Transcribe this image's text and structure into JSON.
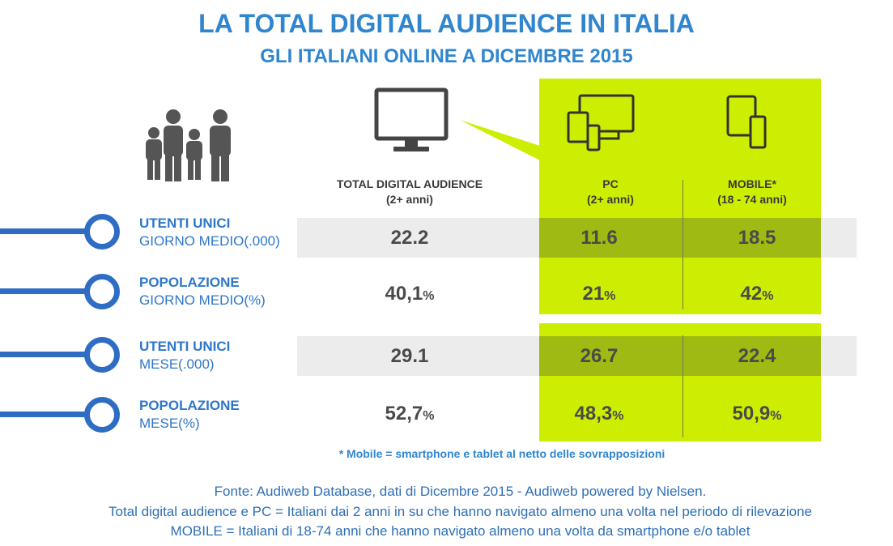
{
  "header": {
    "title": "LA TOTAL DIGITAL AUDIENCE IN ITALIA",
    "subtitle": "GLI ITALIANI ONLINE A DICEMBRE 2015"
  },
  "columns": [
    {
      "title": "TOTAL DIGITAL AUDIENCE",
      "subtitle": "(2+ anni)"
    },
    {
      "title": "PC",
      "subtitle": "(2+ anni)"
    },
    {
      "title": "MOBILE*",
      "subtitle": "(18 - 74 anni)"
    }
  ],
  "rows": [
    {
      "label_bold": "UTENTI UNICI",
      "label_sub": "GIORNO MEDIO(.000)",
      "unit": "",
      "values": [
        "22.2",
        "11.6",
        "18.5"
      ]
    },
    {
      "label_bold": "POPOLAZIONE",
      "label_sub": "GIORNO MEDIO(%)",
      "unit": "%",
      "values": [
        "40,1",
        "21",
        "42"
      ]
    },
    {
      "label_bold": "UTENTI UNICI",
      "label_sub": "MESE(.000)",
      "unit": "",
      "values": [
        "29.1",
        "26.7",
        "22.4"
      ]
    },
    {
      "label_bold": "POPOLAZIONE",
      "label_sub": "MESE(%)",
      "unit": "%",
      "values": [
        "52,7",
        "48,3",
        "50,9"
      ]
    }
  ],
  "footnote": "* Mobile = smartphone e tablet al netto delle sovrapposizioni",
  "source": [
    "Fonte: Audiweb Database, dati di Dicembre 2015 - Audiweb powered by Nielsen.",
    "Total digital audience e PC = Italiani dai 2 anni in su che hanno navigato almeno una volta nel periodo di rilevazione",
    "MOBILE = Italiani di 18-74 anni che hanno navigato almeno una volta da smartphone e/o tablet"
  ],
  "icons": [
    "family-icon",
    "monitor-icon",
    "devices-icon",
    "mobile-devices-icon"
  ],
  "colors": {
    "title": "#2f86cf",
    "highlight_panel": "#cdee00",
    "highlight_row": "#9fba12",
    "row_band": "#ececec",
    "label_blue": "#2e77c9",
    "line_blue": "#2f6cc3"
  },
  "chart_data": {
    "type": "table",
    "title": "LA TOTAL DIGITAL AUDIENCE IN ITALIA",
    "subtitle": "GLI ITALIANI ONLINE A DICEMBRE 2015",
    "columns": [
      "TOTAL DIGITAL AUDIENCE",
      "PC",
      "MOBILE*"
    ],
    "rows": [
      "UTENTI UNICI GIORNO MEDIO(.000)",
      "POPOLAZIONE GIORNO MEDIO(%)",
      "UTENTI UNICI MESE(.000)",
      "POPOLAZIONE MESE(%)"
    ],
    "values": [
      [
        22.2,
        11.6,
        18.5
      ],
      [
        40.1,
        21,
        42
      ],
      [
        29.1,
        26.7,
        22.4
      ],
      [
        52.7,
        48.3,
        50.9
      ]
    ]
  }
}
